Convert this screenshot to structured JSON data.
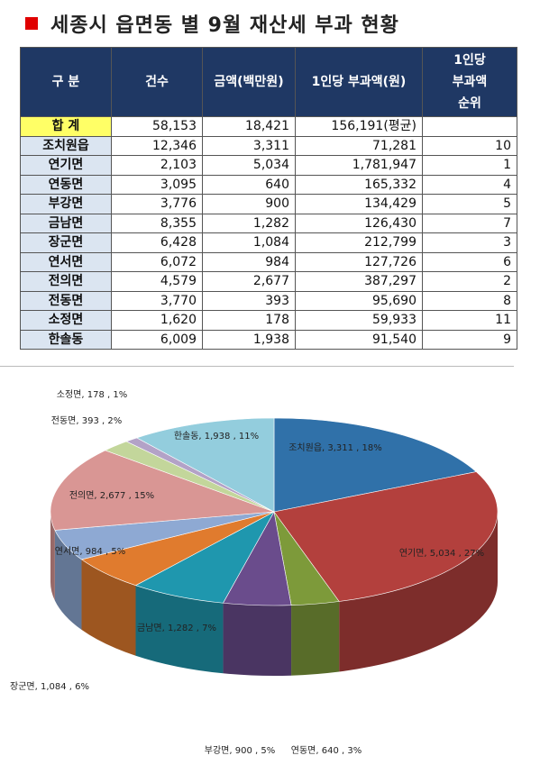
{
  "header": {
    "title": "세종시 읍면동 별 9월 재산세 부과 현황"
  },
  "table": {
    "columns": [
      "구  분",
      "건수",
      "금액(백만원)",
      "1인당 부과액(원)",
      "1인당\n부과액\n순위"
    ],
    "rows": [
      [
        "합  계",
        "58,153",
        "18,421",
        "156,191(평균)"
      ],
      [
        "조치원읍",
        "12,346",
        "3,311",
        "71,281",
        "10"
      ],
      [
        "연기면",
        "2,103",
        "5,034",
        "1,781,947",
        "1"
      ],
      [
        "연동면",
        "3,095",
        "640",
        "165,332",
        "4"
      ],
      [
        "부강면",
        "3,776",
        "900",
        "134,429",
        "5"
      ],
      [
        "금남면",
        "8,355",
        "1,282",
        "126,430",
        "7"
      ],
      [
        "장군면",
        "6,428",
        "1,084",
        "212,799",
        "3"
      ],
      [
        "연서면",
        "6,072",
        "984",
        "127,726",
        "6"
      ],
      [
        "전의면",
        "4,579",
        "2,677",
        "387,297",
        "2"
      ],
      [
        "전동면",
        "3,770",
        "393",
        "95,690",
        "8"
      ],
      [
        "소정면",
        "1,620",
        "178",
        "59,933",
        "11"
      ],
      [
        "한솔동",
        "6,009",
        "1,938",
        "91,540",
        "9"
      ]
    ]
  },
  "chart_data": {
    "type": "pie",
    "values": [
      3311,
      5034,
      640,
      900,
      1282,
      1084,
      984,
      2677,
      393,
      178,
      1938
    ],
    "value_labels": [
      "조치원읍, 3,311 , 18%",
      "연기면, 5,034 , 27%",
      "연동면, 640 , 3%",
      "부강면, 900 , 5%",
      "금남면, 1,282 , 7%",
      "장군면, 1,084 , 6%",
      "연서면, 984 , 5%",
      "전의면, 2,677 , 15%",
      "전동면, 393 , 2%",
      "소정면, 178 , 1%",
      "한솔동, 1,938 , 11%"
    ],
    "colors": [
      "#3071a9",
      "#b3403d",
      "#7d9a3a",
      "#6a4c8c",
      "#1f97ae",
      "#e07b2e",
      "#8ea9d3",
      "#d99694",
      "#c3d69b",
      "#b3a2c7",
      "#93cddd"
    ]
  }
}
